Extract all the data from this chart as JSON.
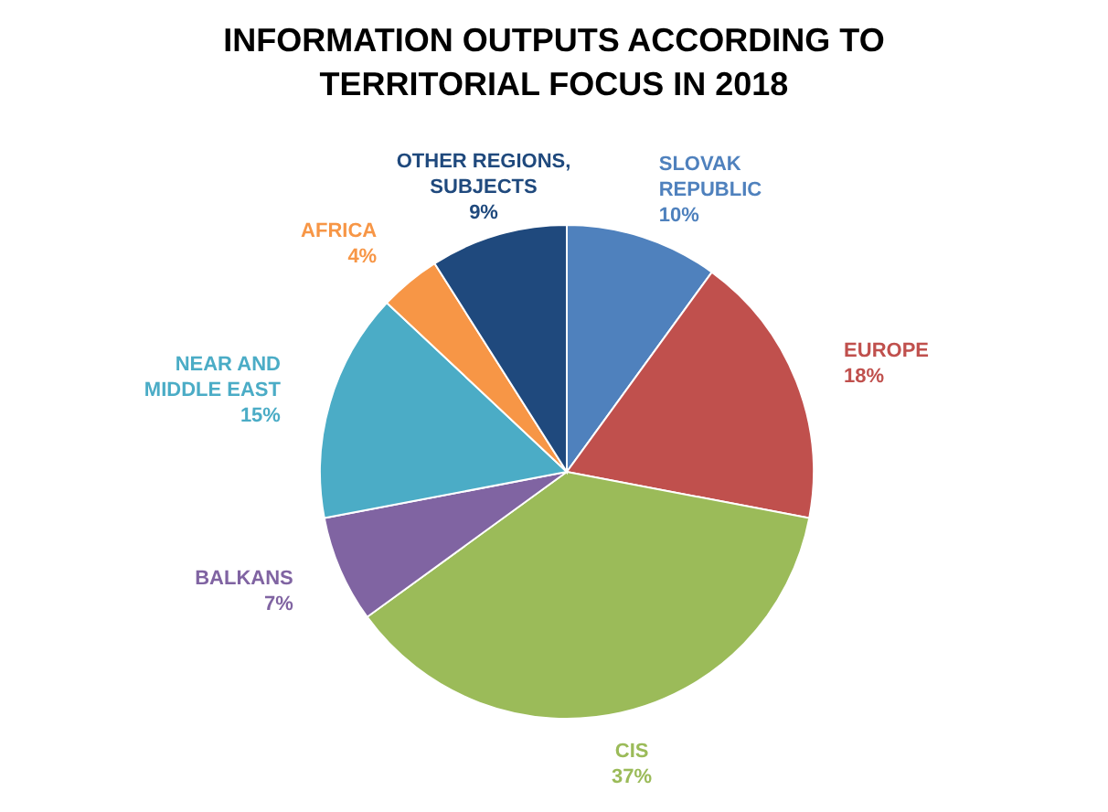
{
  "chart_data": {
    "type": "pie",
    "title": "INFORMATION OUTPUTS ACCORDING TO TERRITORIAL FOCUS IN 2018",
    "categories": [
      "SLOVAK REPUBLIC",
      "EUROPE",
      "CIS",
      "BALKANS",
      "NEAR AND MIDDLE EAST",
      "AFRICA",
      "OTHER REGIONS, SUBJECTS"
    ],
    "values": [
      10,
      18,
      37,
      7,
      15,
      4,
      9
    ],
    "value_labels": [
      "10%",
      "18%",
      "37%",
      "7%",
      "15%",
      "4%",
      "9%"
    ],
    "colors": [
      "#4f81bd",
      "#c0504d",
      "#9bbb59",
      "#8064a2",
      "#4bacc6",
      "#f79646",
      "#1f497d"
    ]
  }
}
